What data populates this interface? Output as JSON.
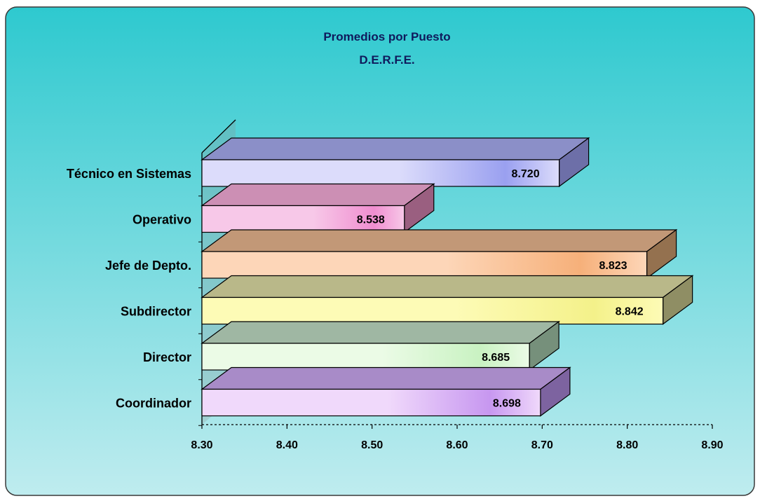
{
  "chart_data": {
    "type": "bar",
    "orientation": "horizontal",
    "style": "3d",
    "title": "Promedios por Puesto",
    "subtitle": "D.E.R.F.E.",
    "categories": [
      "Técnico en Sistemas",
      "Operativo",
      "Jefe de Depto.",
      "Subdirector",
      "Director",
      "Coordinador"
    ],
    "values": [
      8.72,
      8.538,
      8.823,
      8.842,
      8.685,
      8.698
    ],
    "value_labels": [
      "8.720",
      "8.538",
      "8.823",
      "8.842",
      "8.685",
      "8.698"
    ],
    "xlim": [
      8.3,
      8.9
    ],
    "x_ticks": [
      "8.30",
      "8.40",
      "8.50",
      "8.60",
      "8.70",
      "8.80",
      "8.90"
    ],
    "xlabel": "",
    "ylabel": "",
    "grid": false,
    "legend": "none",
    "bar_colors": [
      {
        "front": "#dcdcfb",
        "top": "#8b8fc8",
        "side": "#6d6fa8",
        "glow": "#9aa0f0"
      },
      {
        "front": "#f7c8e8",
        "top": "#cc8fb4",
        "side": "#9a5f80",
        "glow": "#f08ed0"
      },
      {
        "front": "#fdd6b8",
        "top": "#c29877",
        "side": "#94714f",
        "glow": "#f6b07a"
      },
      {
        "front": "#fdfbb6",
        "top": "#b9b889",
        "side": "#8f8e64",
        "glow": "#f4f18a"
      },
      {
        "front": "#ebfbe6",
        "top": "#9fb7a3",
        "side": "#76907b",
        "glow": "#c9f2c2"
      },
      {
        "front": "#f0d9fb",
        "top": "#a88bc8",
        "side": "#7d63a0",
        "glow": "#c797f0"
      }
    ],
    "background": {
      "top": "#2ec9cf",
      "bottom": "#bfecef"
    }
  }
}
